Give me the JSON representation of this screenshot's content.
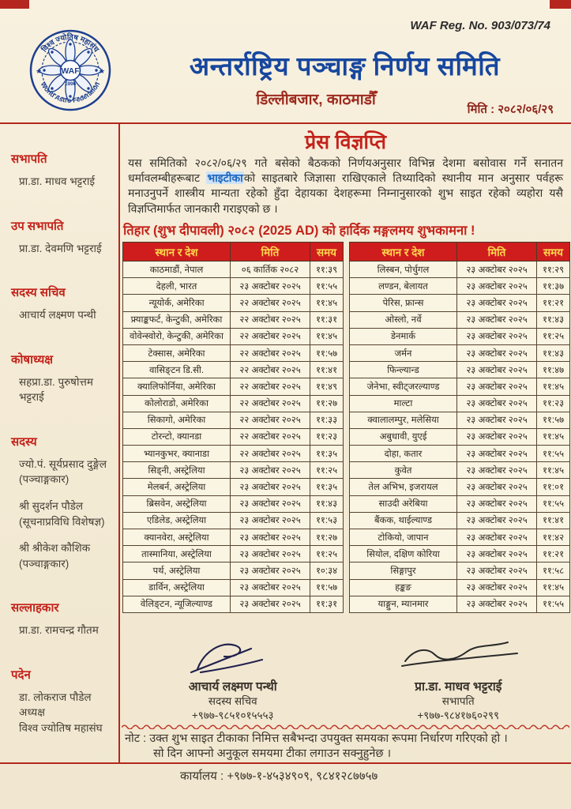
{
  "header": {
    "reg_no": "WAF Reg. No. 903/073/74",
    "org_title": "अन्तर्राष्ट्रिय पञ्चाङ्ग निर्णय समिति",
    "address": "डिल्लीबजार, काठमाडौँ",
    "date_label": "मिति : २०८२/०६/२९"
  },
  "logo": {
    "top_text": "विश्व ज्योतिष महासंघ",
    "bottom_text": "World Astro Federation",
    "center": "WAF",
    "year": "1996"
  },
  "sidebar": {
    "sections": [
      {
        "title": "सभापति",
        "people": [
          [
            "प्रा.डा. माधव भट्टराई"
          ]
        ]
      },
      {
        "title": "उप सभापति",
        "people": [
          [
            "प्रा.डा. देवमणि भट्टराई"
          ]
        ]
      },
      {
        "title": "सदस्य सचिव",
        "people": [
          [
            "आचार्य लक्ष्मण पन्थी"
          ]
        ]
      },
      {
        "title": "कोषाध्यक्ष",
        "people": [
          [
            "सहप्रा.डा. पुरुषोत्तम भट्टराई"
          ]
        ]
      },
      {
        "title": "सदस्य",
        "people": [
          [
            "ज्यो.पं. सूर्यप्रसाद दुङ्गेल",
            "(पञ्चाङ्गकार)"
          ],
          [
            "श्री सुदर्शन पौडेल",
            "(सूचनाप्रविधि विशेषज्ञ)"
          ],
          [
            "श्री श्रीकेश कौशिक",
            "(पञ्चाङ्गकार)"
          ]
        ]
      },
      {
        "title": "सल्लाहकार",
        "people": [
          [
            "प्रा.डा. रामचन्द्र गौतम"
          ]
        ]
      },
      {
        "title": "पदेन",
        "people": [
          [
            "डा. लोकराज पौडेल",
            "अध्यक्ष",
            "विश्व ज्योतिष महासंघ"
          ]
        ]
      }
    ]
  },
  "press": {
    "title": "प्रेस विज्ञप्ति",
    "body_part1": "यस समितिको २०८२/०६/२९ गते बसेको बैठकको निर्णयअनुसार विभिन्न देशमा बसोवास गर्ने सनातन धर्मावलम्बीहरूबाट ",
    "body_highlight": "भाइटीका",
    "body_part2": "को साइतबारे जिज्ञासा राखिएकाले तिथ्यादिको स्थानीय मान अनुसार पर्वहरू मनाउनुपर्ने शास्त्रीय मान्यता रहेको हुँदा देहायका देशहरूमा निम्नानुसारको शुभ साइत रहेको व्यहोरा यसै विज्ञप्तिमार्फत जानकारी गराइएको छ ।",
    "greeting": "तिहार (शुभ दीपावली) २०८२ (2025 AD) को हार्दिक मङ्गलमय शुभकामना !"
  },
  "table_headers": [
    "स्थान र देश",
    "मिति",
    "समय"
  ],
  "tables": {
    "left": [
      [
        "काठमाडौं, नेपाल",
        "०६ कार्तिक २०८२",
        "११:३९"
      ],
      [
        "देहली, भारत",
        "२३ अक्टोबर २०२५",
        "११:५५"
      ],
      [
        "न्यूयोर्क, अमेरिका",
        "२२ अक्टोबर २०२५",
        "११:४५"
      ],
      [
        "फ्र्याङ्कफर्ट, केन्टुकी, अमेरिका",
        "२२ अक्टोबर २०२५",
        "११:३१"
      ],
      [
        "वोवेन्स्वोरो, केन्टुकी, अमेरिका",
        "२२ अक्टोबर २०२५",
        "११:४५"
      ],
      [
        "टेक्सास, अमेरिका",
        "२२ अक्टोबर २०२५",
        "११:५७"
      ],
      [
        "वासिङ्टन डि.सी.",
        "२२ अक्टोबर २०२५",
        "११:४१"
      ],
      [
        "क्यालिफोर्निया, अमेरिका",
        "२२ अक्टोबर २०२५",
        "११:४९"
      ],
      [
        "कोलोराडो, अमेरिका",
        "२२ अक्टोबर २०२५",
        "११:२७"
      ],
      [
        "सिकागो, अमेरिका",
        "२२ अक्टोबर २०२५",
        "११:३३"
      ],
      [
        "टोरन्टो, क्यानडा",
        "२२ अक्टोबर २०२५",
        "११:२३"
      ],
      [
        "भ्यानकुभर, क्यानाडा",
        "२२ अक्टोबर २०२५",
        "११:३५"
      ],
      [
        "सिड्नी, अस्ट्रेलिया",
        "२३ अक्टोबर २०२५",
        "११:२५"
      ],
      [
        "मेलबर्न, अस्ट्रेलिया",
        "२३ अक्टोबर २०२५",
        "११:३५"
      ],
      [
        "ब्रिसवेन, अस्ट्रेलिया",
        "२३ अक्टोबर २०२५",
        "११:४३"
      ],
      [
        "एडिलेड, अस्ट्रेलिया",
        "२३ अक्टोबर २०२५",
        "११:५३"
      ],
      [
        "क्यानवेरा, अस्ट्रेलिया",
        "२३ अक्टोबर २०२५",
        "११:२७"
      ],
      [
        "तास्मानिया, अस्ट्रेलिया",
        "२३ अक्टोबर २०२५",
        "११:२५"
      ],
      [
        "पर्थ, अस्ट्रेलिया",
        "२३ अक्टोबर २०२५",
        "१०:३४"
      ],
      [
        "डार्विन, अस्ट्रेलिया",
        "२३ अक्टोबर २०२५",
        "११:५७"
      ],
      [
        "वेलिङ्टन, न्यूजिल्याण्ड",
        "२३ अक्टोबर २०२५",
        "११:३१"
      ]
    ],
    "right": [
      [
        "लिस्बन, पोर्चुगल",
        "२३ अक्टोबर २०२५",
        "११:२९"
      ],
      [
        "लण्डन, बेलायत",
        "२३ अक्टोबर २०२५",
        "११:३७"
      ],
      [
        "पेरिस, फ्रान्स",
        "२३ अक्टोबर २०२५",
        "११:२१"
      ],
      [
        "ओस्लो, नर्वे",
        "२३ अक्टोबर २०२५",
        "११:४३"
      ],
      [
        "डेनमार्क",
        "२३ अक्टोबर २०२५",
        "११:२५"
      ],
      [
        "जर्मन",
        "२३ अक्टोबर २०२५",
        "११:४३"
      ],
      [
        "फिन्ल्यान्ड",
        "२३ अक्टोबर २०२५",
        "११:४७"
      ],
      [
        "जेनेभा, स्वीट्जरल्याण्ड",
        "२३ अक्टोबर २०२५",
        "११:४५"
      ],
      [
        "माल्टा",
        "२३ अक्टोबर २०२५",
        "११:२३"
      ],
      [
        "क्वालालम्पुर, मलेसिया",
        "२३ अक्टोबर २०२५",
        "११:५७"
      ],
      [
        "अबुधावी, युएई",
        "२३ अक्टोबर २०२५",
        "११:४५"
      ],
      [
        "दोहा, कतार",
        "२३ अक्टोबर २०२५",
        "११:५५"
      ],
      [
        "कुवेत",
        "२३ अक्टोबर २०२५",
        "११:४५"
      ],
      [
        "तेल अभिभ, इजरायल",
        "२३ अक्टोबर २०२५",
        "११:०१"
      ],
      [
        "साउदी अरेबिया",
        "२३ अक्टोबर २०२५",
        "११:५५"
      ],
      [
        "बैंकक, थाईल्याण्ड",
        "२३ अक्टोबर २०२५",
        "११:४१"
      ],
      [
        "टोकियो, जापान",
        "२३ अक्टोबर २०२५",
        "११:४२"
      ],
      [
        "सियोल, दक्षिण कोरिया",
        "२३ अक्टोबर २०२५",
        "११:२१"
      ],
      [
        "सिङ्गापुर",
        "२३ अक्टोबर २०२५",
        "११:५८"
      ],
      [
        "हङ्कङ",
        "२३ अक्टोबर २०२५",
        "११:४५"
      ],
      [
        "याङ्गुन, म्यानमार",
        "२३ अक्टोबर २०२५",
        "११:५५"
      ]
    ]
  },
  "signatures": [
    {
      "name": "आचार्य लक्ष्मण पन्थी",
      "role": "सदस्य सचिव",
      "phone": "+९७७-९८५१०१५५५३"
    },
    {
      "name": "प्रा.डा. माधव भट्टराई",
      "role": "सभापति",
      "phone": "+९७७-९८४१७६०२९९"
    }
  ],
  "note": {
    "line1": "नोट : उक्त शुभ साइत टीकाका निमित्त सबैभन्दा उपयुक्त समयका रूपमा निर्धारण गरिएको हो ।",
    "line2": "सो दिन आफ्नो अनुकूल समयमा टीका लगाउन सक्नुहुनेछ ।"
  },
  "office": "कार्यालय : +९७७-१-४५३४९०९, ९८४१२८७७५७",
  "colors": {
    "accent_red": "#b3281e",
    "title_blue": "#17479e",
    "table_header_bg": "#cf1d1d",
    "table_header_text": "#ffd84d",
    "highlight_blue": "#1d66c0",
    "paper": "#f4ebd6"
  }
}
